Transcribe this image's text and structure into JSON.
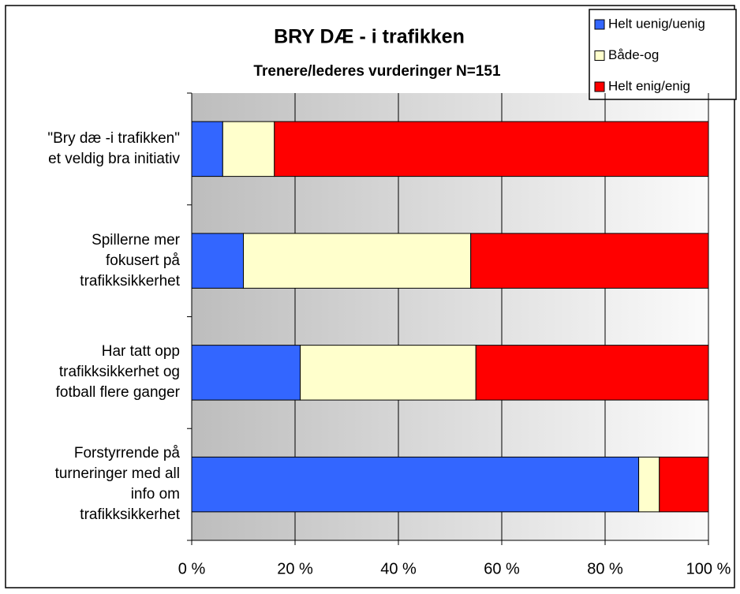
{
  "chart_data": {
    "type": "stacked_barh",
    "title": "BRY DÆ - i trafikken",
    "subtitle": "Trenere/lederes vurderinger N=151",
    "categories": [
      "\"Bry dæ -i trafikken\"\net veldig bra initiativ",
      "Spillerne mer\nfokusert på\ntrafikksikkerhet",
      "Har tatt opp\ntrafikksikkerhet og\nfotball flere ganger",
      "Forstyrrende på\nturneringer med all\ninfo om\ntrafikksikkerhet"
    ],
    "series": [
      {
        "name": "Helt uenig/uenig",
        "color": "#3366ff",
        "values": [
          6,
          10,
          21,
          86.5
        ]
      },
      {
        "name": "Både-og",
        "color": "#ffffcc",
        "values": [
          10,
          44,
          34,
          4
        ]
      },
      {
        "name": "Helt enig/enig",
        "color": "#ff0000",
        "values": [
          84,
          46,
          45,
          9.5
        ]
      }
    ],
    "xlim": [
      0,
      100
    ],
    "xticks": [
      {
        "value": 0,
        "label": "0 %"
      },
      {
        "value": 20,
        "label": "20 %"
      },
      {
        "value": 40,
        "label": "40 %"
      },
      {
        "value": 60,
        "label": "60 %"
      },
      {
        "value": 80,
        "label": "80 %"
      },
      {
        "value": 100,
        "label": "100 %"
      }
    ],
    "grid": true,
    "legend": "top-right"
  }
}
